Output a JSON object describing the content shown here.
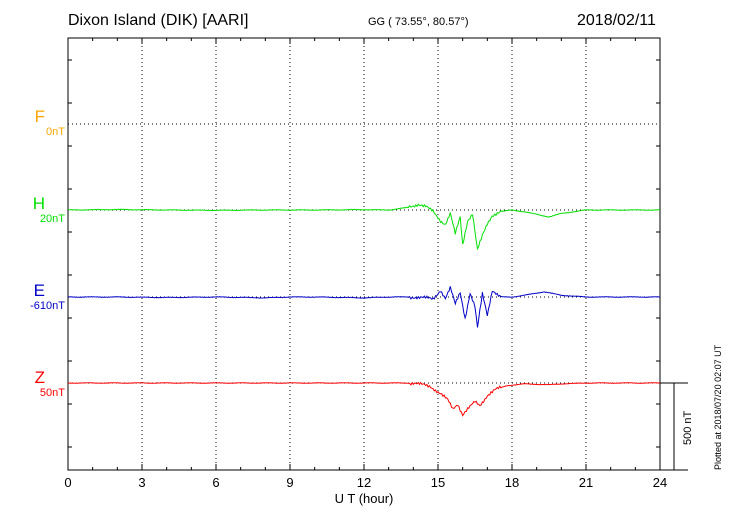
{
  "header": {
    "station": "Dixon Island (DIK)  [AARI]",
    "coords": "GG ( 73.55°,  80.57°)",
    "date": "2018/02/11"
  },
  "plotted_note": "Plotted at 2018/07/20 02:07 UT",
  "scale_label": "500 nT",
  "chart_data": {
    "type": "line",
    "xlabel": "U T (hour)",
    "xlim": [
      0,
      24
    ],
    "x_ticks": [
      "0",
      "3",
      "6",
      "9",
      "12",
      "15",
      "18",
      "21",
      "24"
    ],
    "scale_nT": 500,
    "grid": true,
    "series": [
      {
        "name": "F",
        "baseline_label": "0nT",
        "color": "#ffa500",
        "values": []
      },
      {
        "name": "H",
        "baseline_label": "20nT",
        "color": "#00e000",
        "points": [
          [
            0,
            0
          ],
          [
            2,
            3
          ],
          [
            4,
            0
          ],
          [
            6,
            -2
          ],
          [
            8,
            0
          ],
          [
            10,
            0
          ],
          [
            12,
            2
          ],
          [
            13,
            0
          ],
          [
            13.8,
            15
          ],
          [
            14.2,
            35
          ],
          [
            14.5,
            20
          ],
          [
            14.8,
            -10
          ],
          [
            15.1,
            -60
          ],
          [
            15.3,
            -80
          ],
          [
            15.5,
            -20
          ],
          [
            15.7,
            -140
          ],
          [
            15.9,
            -40
          ],
          [
            16.0,
            -200
          ],
          [
            16.2,
            -60
          ],
          [
            16.4,
            -20
          ],
          [
            16.6,
            -230
          ],
          [
            16.8,
            -150
          ],
          [
            17.0,
            -80
          ],
          [
            17.2,
            -30
          ],
          [
            17.5,
            -10
          ],
          [
            18,
            0
          ],
          [
            18.5,
            -10
          ],
          [
            19,
            -25
          ],
          [
            19.5,
            -40
          ],
          [
            20,
            -20
          ],
          [
            21,
            0
          ],
          [
            22,
            0
          ],
          [
            24,
            0
          ]
        ]
      },
      {
        "name": "E",
        "baseline_label": "-610nT",
        "color": "#0000c8",
        "points": [
          [
            0,
            0
          ],
          [
            2,
            0
          ],
          [
            4,
            -3
          ],
          [
            6,
            0
          ],
          [
            8,
            -5
          ],
          [
            9,
            0
          ],
          [
            10,
            0
          ],
          [
            12,
            -5
          ],
          [
            13,
            0
          ],
          [
            14,
            0
          ],
          [
            14.8,
            -10
          ],
          [
            15.1,
            40
          ],
          [
            15.3,
            -10
          ],
          [
            15.5,
            50
          ],
          [
            15.7,
            -40
          ],
          [
            15.9,
            30
          ],
          [
            16.1,
            -120
          ],
          [
            16.3,
            20
          ],
          [
            16.5,
            -60
          ],
          [
            16.6,
            -180
          ],
          [
            16.8,
            20
          ],
          [
            17.0,
            -100
          ],
          [
            17.2,
            40
          ],
          [
            17.5,
            0
          ],
          [
            18,
            0
          ],
          [
            18.5,
            10
          ],
          [
            19.3,
            30
          ],
          [
            20,
            10
          ],
          [
            21,
            0
          ],
          [
            22,
            0
          ],
          [
            24,
            0
          ]
        ]
      },
      {
        "name": "Z",
        "baseline_label": "50nT",
        "color": "#ff0000",
        "points": [
          [
            0,
            0
          ],
          [
            4,
            0
          ],
          [
            8,
            0
          ],
          [
            12,
            0
          ],
          [
            14,
            0
          ],
          [
            14.7,
            -20
          ],
          [
            15.1,
            -60
          ],
          [
            15.4,
            -100
          ],
          [
            15.6,
            -150
          ],
          [
            15.8,
            -120
          ],
          [
            16.0,
            -180
          ],
          [
            16.2,
            -150
          ],
          [
            16.5,
            -110
          ],
          [
            16.7,
            -130
          ],
          [
            17.0,
            -70
          ],
          [
            17.3,
            -40
          ],
          [
            17.8,
            -15
          ],
          [
            18.5,
            -5
          ],
          [
            19.5,
            -10
          ],
          [
            20,
            -5
          ],
          [
            21,
            0
          ],
          [
            24,
            0
          ]
        ]
      }
    ]
  }
}
